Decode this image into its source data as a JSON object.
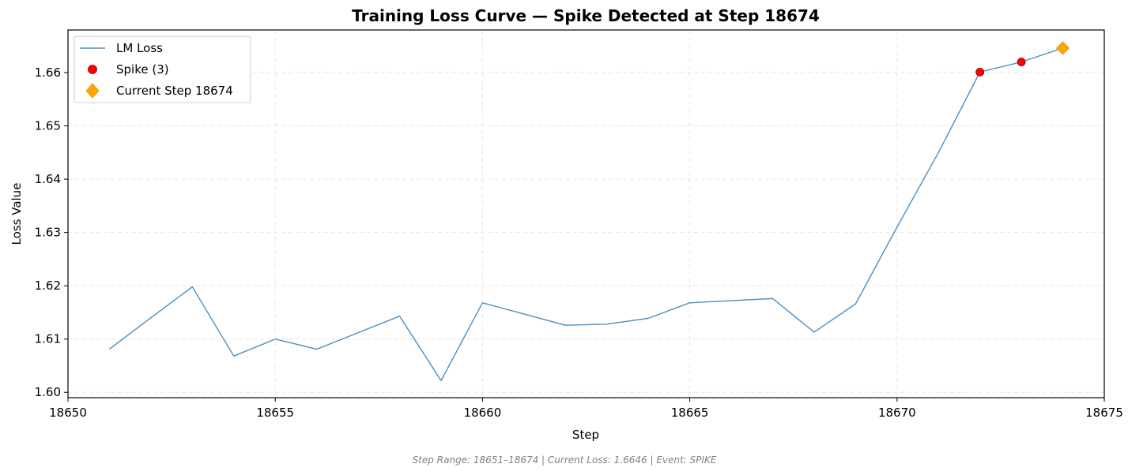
{
  "chart_data": {
    "type": "line",
    "title": "Training Loss Curve — Spike Detected at Step 18674",
    "xlabel": "Step",
    "ylabel": "Loss Value",
    "xlim": [
      18650,
      18675
    ],
    "ylim": [
      1.599,
      1.668
    ],
    "xticks": [
      18650,
      18655,
      18660,
      18665,
      18670,
      18675
    ],
    "yticks": [
      1.6,
      1.61,
      1.62,
      1.63,
      1.64,
      1.65,
      1.66
    ],
    "ytick_labels": [
      "1.60",
      "1.61",
      "1.62",
      "1.63",
      "1.64",
      "1.65",
      "1.66"
    ],
    "grid": true,
    "legend_position": "top-left",
    "series": [
      {
        "name": "LM Loss",
        "kind": "line",
        "color": "#4a90c4",
        "x": [
          18651,
          18652,
          18653,
          18654,
          18655,
          18656,
          18657,
          18658,
          18659,
          18660,
          18661,
          18662,
          18663,
          18664,
          18665,
          18666,
          18667,
          18668,
          18669,
          18670,
          18671,
          18672,
          18673,
          18674
        ],
        "y": [
          1.6081,
          1.614,
          1.6198,
          1.6068,
          1.61,
          1.6081,
          1.6112,
          1.6143,
          1.6022,
          1.6168,
          1.6147,
          1.6126,
          1.6128,
          1.6139,
          1.6168,
          1.6172,
          1.6176,
          1.6113,
          1.6166,
          1.631,
          1.645,
          1.6601,
          1.662,
          1.6646
        ]
      },
      {
        "name": "Spike (3)",
        "kind": "scatter",
        "marker": "circle",
        "color": "#ff0000",
        "x": [
          18672,
          18673
        ],
        "y": [
          1.6601,
          1.662
        ]
      },
      {
        "name": "Current Step 18674",
        "kind": "scatter",
        "marker": "diamond",
        "color": "#ffa500",
        "x": [
          18674
        ],
        "y": [
          1.6646
        ]
      }
    ]
  },
  "footnote": "Step Range: 18651–18674 | Current Loss: 1.6646 | Event: SPIKE"
}
